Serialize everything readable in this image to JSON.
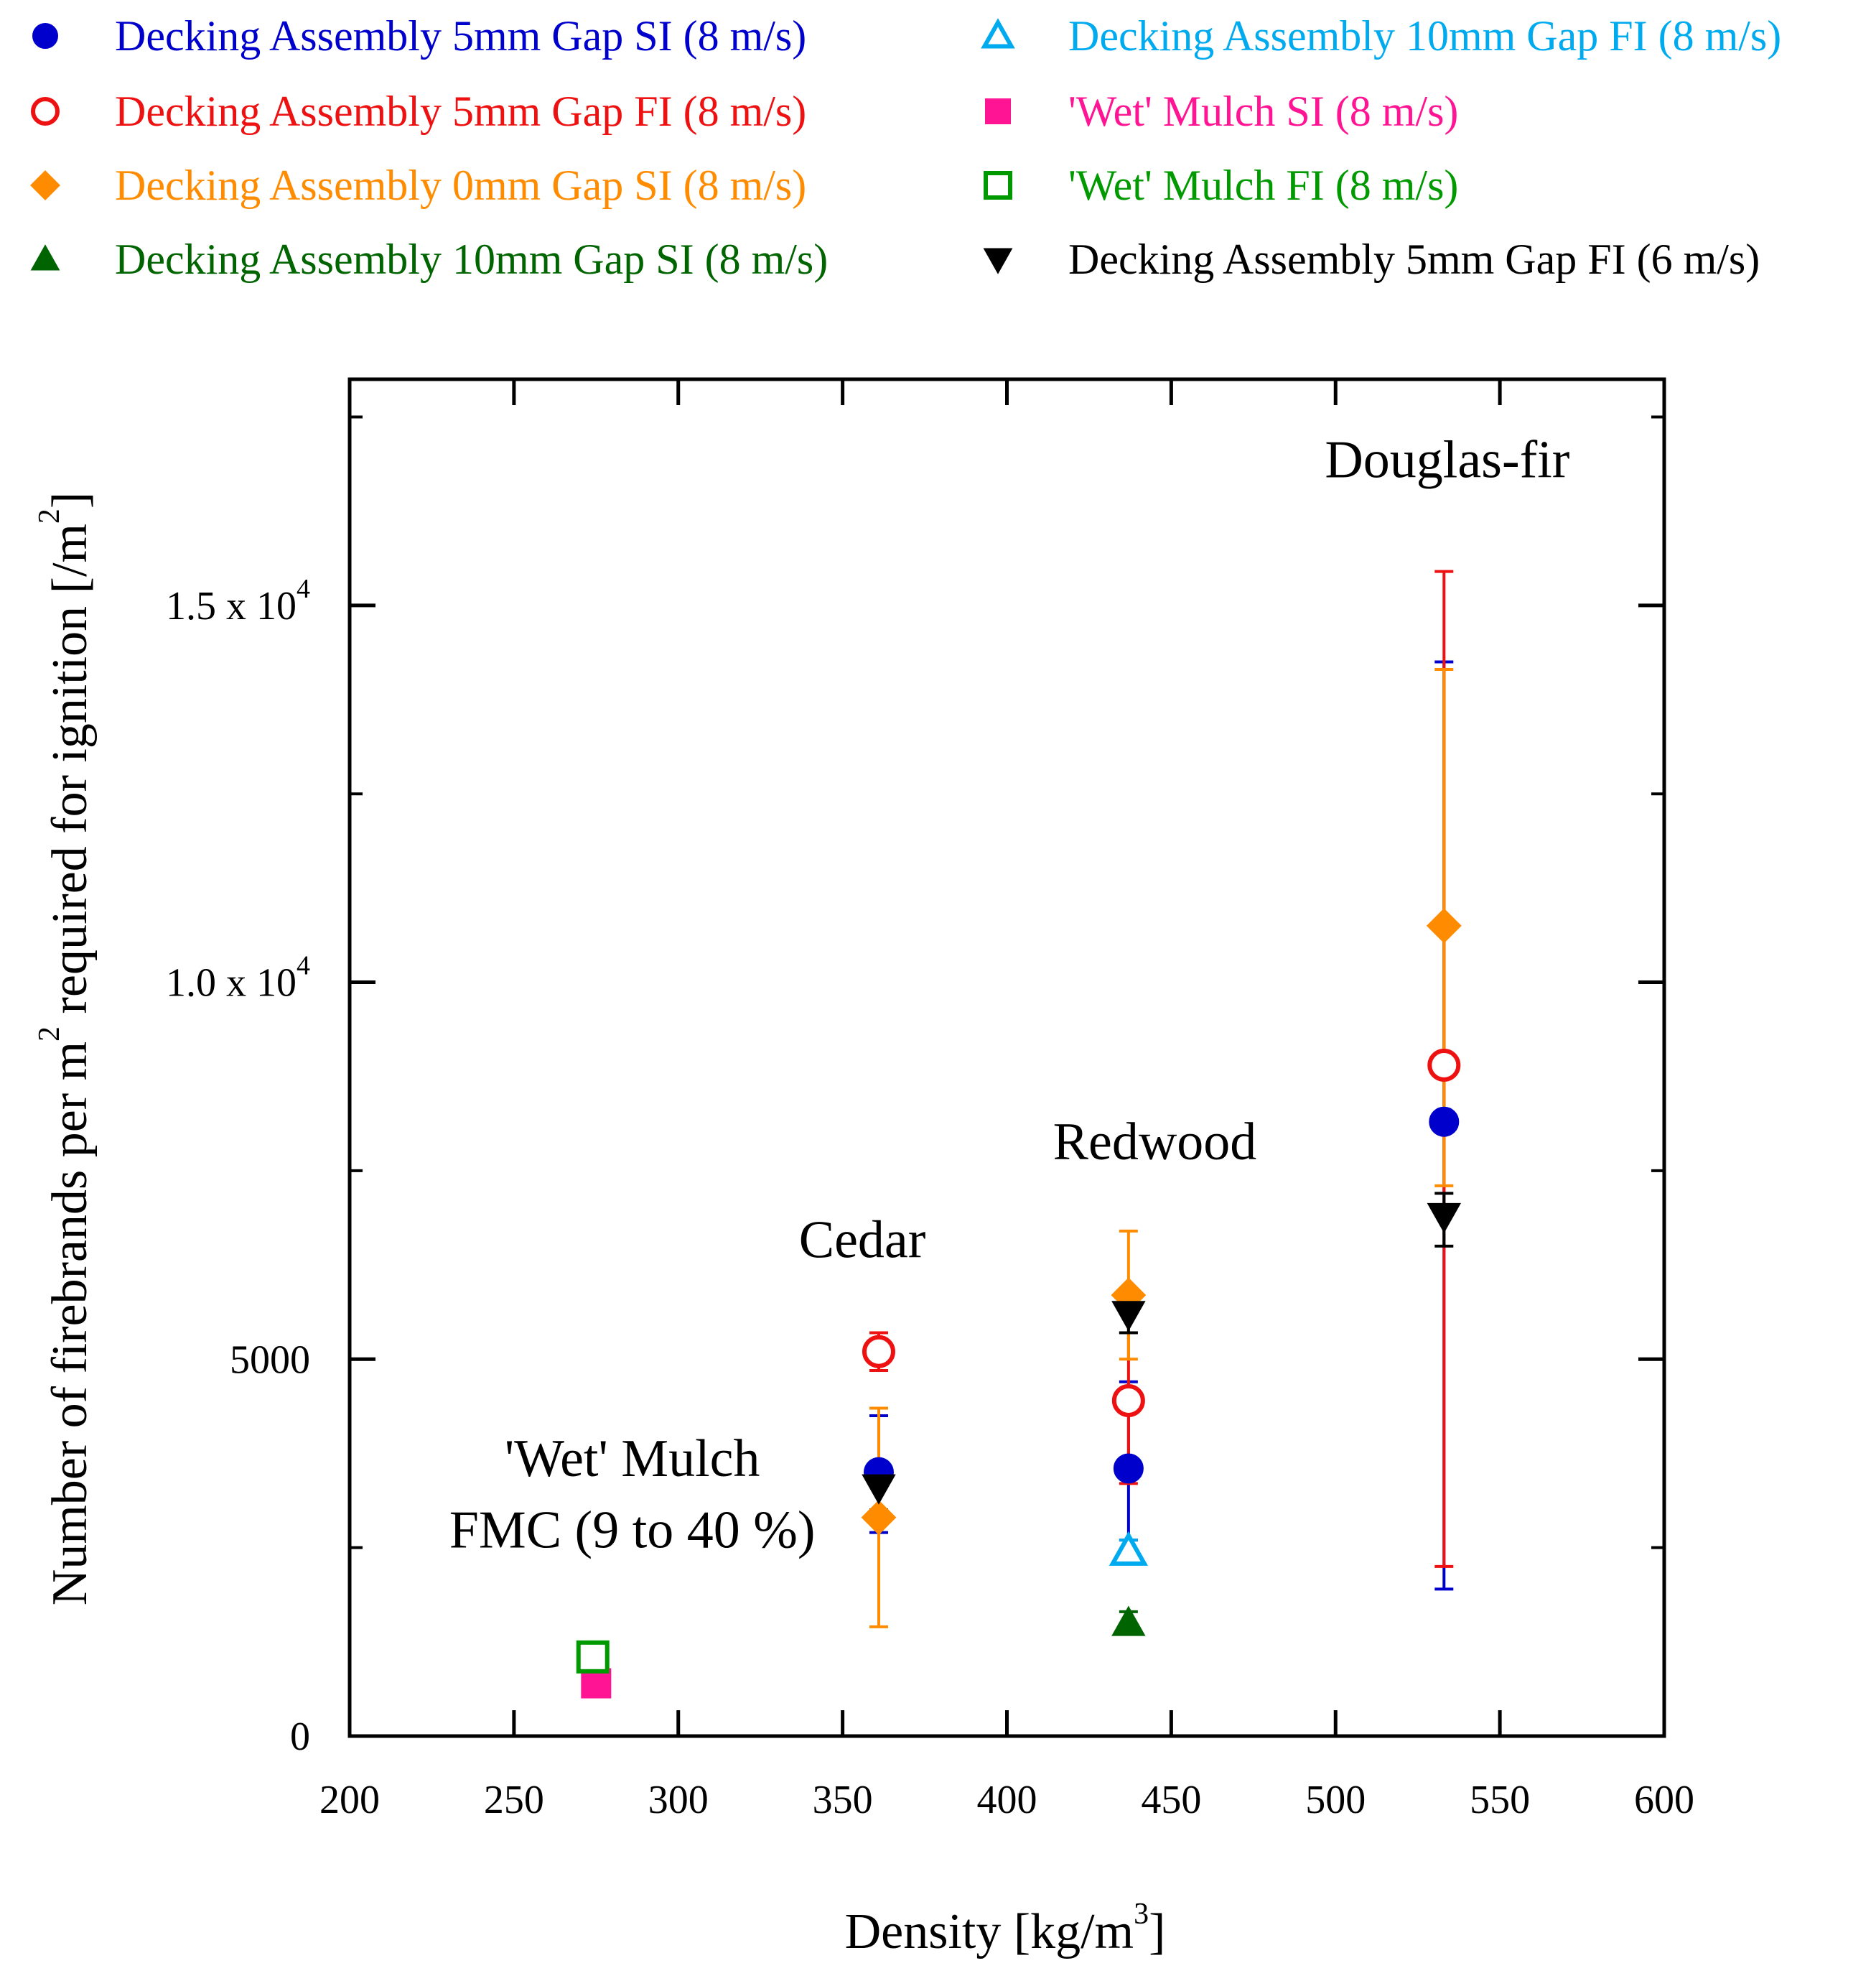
{
  "chart_data": {
    "type": "scatter",
    "xlabel": "Density [kg/m3]",
    "xlabel_main": "Density [kg/m",
    "xlabel_sup": "3",
    "xlabel_end": "]",
    "ylabel": "Number of firebrands per m2 required for ignition [/m2]",
    "ylabel_part1": "Number of firebrands per m",
    "ylabel_sup1": "2",
    "ylabel_part2": " required for ignition [/m",
    "ylabel_sup2": "2",
    "ylabel_part3": "]",
    "xlim": [
      200,
      600
    ],
    "ylim": [
      0,
      18000
    ],
    "xticks": [
      {
        "value": 200,
        "label": "200"
      },
      {
        "value": 250,
        "label": "250"
      },
      {
        "value": 300,
        "label": "300"
      },
      {
        "value": 350,
        "label": "350"
      },
      {
        "value": 400,
        "label": "400"
      },
      {
        "value": 450,
        "label": "450"
      },
      {
        "value": 500,
        "label": "500"
      },
      {
        "value": 550,
        "label": "550"
      },
      {
        "value": 600,
        "label": "600"
      }
    ],
    "yticks": [
      {
        "value": 0,
        "base": "0",
        "exp": ""
      },
      {
        "value": 5000,
        "base": "5000",
        "exp": ""
      },
      {
        "value": 10000,
        "base": "1.0 x 10",
        "exp": "4"
      },
      {
        "value": 15000,
        "base": "1.5 x 10",
        "exp": "4"
      }
    ],
    "annotations": [
      {
        "text": "Douglas-fir",
        "x": 534,
        "y": 16700
      },
      {
        "text": "Redwood",
        "x": 445,
        "y": 7650
      },
      {
        "text": "Cedar",
        "x": 356,
        "y": 6350
      },
      {
        "text": "'Wet' Mulch",
        "x": 286,
        "y": 3450
      },
      {
        "text": "FMC (9 to 40 %)",
        "x": 286,
        "y": 2500
      }
    ],
    "series": [
      {
        "name": "Decking Assembly 5mm Gap SI (8 m/s)",
        "color": "#0000CC",
        "marker": "circle",
        "filled": true,
        "points": [
          {
            "x": 361,
            "y": 3500,
            "lo": 2700,
            "hi": 4250
          },
          {
            "x": 437,
            "y": 3550,
            "lo": 2600,
            "hi": 4700
          },
          {
            "x": 533,
            "y": 8150,
            "lo": 1950,
            "hi": 14250
          }
        ]
      },
      {
        "name": "Decking Assembly 5mm Gap FI (8 m/s)",
        "color": "#EE1111",
        "marker": "circle",
        "filled": false,
        "points": [
          {
            "x": 361,
            "y": 5100,
            "lo": 4850,
            "hi": 5350
          },
          {
            "x": 437,
            "y": 4450,
            "lo": 3350,
            "hi": 5350
          },
          {
            "x": 533,
            "y": 8900,
            "lo": 2250,
            "hi": 15450
          }
        ]
      },
      {
        "name": "Decking Assembly 0mm Gap SI (8 m/s)",
        "color": "#FF8C00",
        "marker": "diamond",
        "filled": true,
        "points": [
          {
            "x": 361,
            "y": 2900,
            "lo": 1450,
            "hi": 4350
          },
          {
            "x": 437,
            "y": 5850,
            "lo": 5000,
            "hi": 6700
          },
          {
            "x": 533,
            "y": 10750,
            "lo": 7300,
            "hi": 14150
          }
        ]
      },
      {
        "name": "Decking Assembly 10mm Gap SI (8 m/s)",
        "color": "#006400",
        "marker": "triangle",
        "filled": true,
        "points": [
          {
            "x": 437,
            "y": 1500,
            "lo": 1350,
            "hi": 1650
          }
        ]
      },
      {
        "name": "Decking Assembly 10mm Gap FI (8 m/s)",
        "color": "#00AAEE",
        "marker": "triangle",
        "filled": false,
        "points": [
          {
            "x": 437,
            "y": 2450,
            "lo": 2300,
            "hi": 2600
          }
        ]
      },
      {
        "name": "'Wet' Mulch SI (8 m/s)",
        "color": "#FF1493",
        "marker": "square",
        "filled": true,
        "points": [
          {
            "x": 275,
            "y": 700,
            "lo": 550,
            "hi": 850
          }
        ]
      },
      {
        "name": "'Wet' Mulch FI (8 m/s)",
        "color": "#009900",
        "marker": "square",
        "filled": false,
        "points": [
          {
            "x": 274,
            "y": 1050,
            "lo": 900,
            "hi": 1200
          }
        ]
      },
      {
        "name": "Decking Assembly 5mm Gap FI (6 m/s)",
        "color": "#000000",
        "marker": "triangle-down",
        "filled": true,
        "points": [
          {
            "x": 361,
            "y": 3300,
            "lo": 3000,
            "hi": 3600
          },
          {
            "x": 437,
            "y": 5600,
            "lo": 5350,
            "hi": 5850
          },
          {
            "x": 533,
            "y": 6900,
            "lo": 6500,
            "hi": 7200
          }
        ]
      }
    ]
  }
}
